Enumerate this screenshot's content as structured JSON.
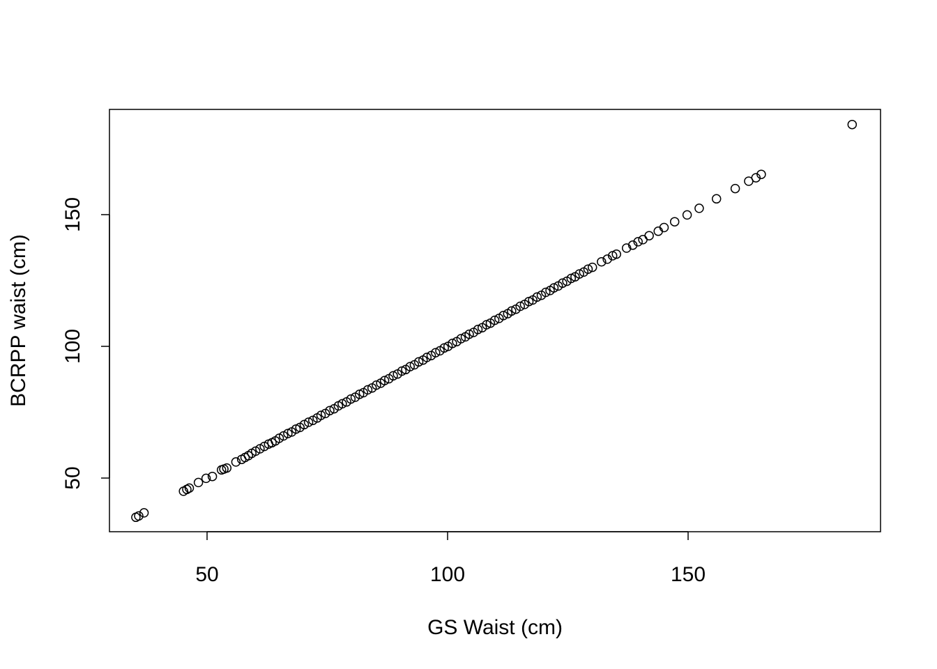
{
  "chart_data": {
    "type": "scatter",
    "title": "",
    "xlabel": "GS Waist (cm)",
    "ylabel": "BCRPP waist (cm)",
    "xlim": [
      30,
      190
    ],
    "ylim": [
      30,
      190
    ],
    "xticks": [
      50,
      100,
      150
    ],
    "yticks": [
      50,
      100,
      150
    ],
    "grid": false,
    "legend": "none",
    "marker": "open-circle",
    "color": "#000000",
    "x": [
      35.2,
      35.8,
      36.9,
      45.1,
      45.8,
      46.3,
      48.2,
      49.8,
      51.1,
      53.0,
      53.5,
      54.1,
      56.0,
      57.2,
      57.9,
      58.6,
      59.3,
      60.1,
      61.0,
      61.9,
      62.8,
      63.5,
      64.2,
      65.0,
      65.9,
      66.8,
      67.6,
      68.5,
      69.3,
      70.2,
      71.1,
      72.0,
      72.9,
      73.7,
      74.6,
      75.5,
      76.4,
      77.3,
      78.1,
      79.0,
      79.9,
      80.8,
      81.7,
      82.5,
      83.4,
      84.3,
      85.2,
      86.1,
      86.9,
      87.8,
      88.7,
      89.6,
      90.5,
      91.3,
      92.2,
      93.1,
      94.0,
      94.9,
      95.7,
      96.6,
      97.5,
      98.4,
      99.3,
      100.1,
      101.0,
      101.9,
      102.8,
      103.7,
      104.5,
      105.4,
      106.3,
      107.2,
      108.1,
      108.9,
      109.8,
      110.7,
      111.6,
      112.5,
      113.3,
      114.2,
      115.1,
      116.0,
      116.9,
      117.7,
      118.6,
      119.5,
      120.4,
      121.3,
      122.1,
      123.0,
      123.9,
      124.8,
      125.7,
      126.5,
      127.4,
      128.3,
      129.2,
      130.1,
      132.0,
      133.2,
      134.3,
      135.1,
      137.2,
      138.5,
      139.6,
      140.6,
      141.9,
      143.8,
      145.0,
      147.2,
      149.8,
      152.3,
      155.9,
      159.8,
      162.6,
      164.1,
      165.2,
      184.1
    ],
    "y": [
      35.1,
      35.6,
      36.8,
      45.0,
      45.7,
      46.2,
      48.3,
      49.9,
      50.6,
      53.1,
      53.4,
      53.8,
      56.1,
      57.1,
      57.8,
      58.5,
      59.4,
      60.2,
      61.1,
      62.0,
      62.9,
      63.4,
      64.1,
      65.1,
      66.0,
      66.9,
      67.5,
      68.6,
      69.2,
      70.3,
      71.2,
      71.9,
      72.8,
      73.8,
      74.5,
      75.6,
      76.3,
      77.4,
      78.2,
      78.9,
      80.0,
      80.7,
      81.8,
      82.4,
      83.5,
      84.2,
      85.3,
      86.0,
      87.0,
      87.7,
      88.8,
      89.5,
      90.6,
      91.2,
      92.3,
      93.0,
      94.1,
      94.8,
      95.8,
      96.5,
      97.6,
      98.3,
      99.4,
      100.0,
      101.1,
      101.8,
      102.9,
      103.6,
      104.6,
      105.3,
      106.4,
      107.1,
      108.2,
      108.8,
      109.9,
      110.6,
      111.7,
      112.4,
      113.4,
      114.1,
      115.2,
      115.9,
      117.0,
      117.6,
      118.7,
      119.4,
      120.5,
      121.2,
      122.2,
      122.9,
      124.0,
      124.7,
      125.8,
      126.4,
      127.5,
      128.2,
      129.3,
      130.0,
      132.1,
      133.1,
      134.4,
      135.0,
      137.3,
      138.4,
      139.7,
      140.5,
      142.0,
      143.7,
      145.1,
      147.3,
      149.9,
      152.4,
      156.0,
      159.9,
      162.7,
      164.0,
      165.3,
      184.2
    ]
  }
}
